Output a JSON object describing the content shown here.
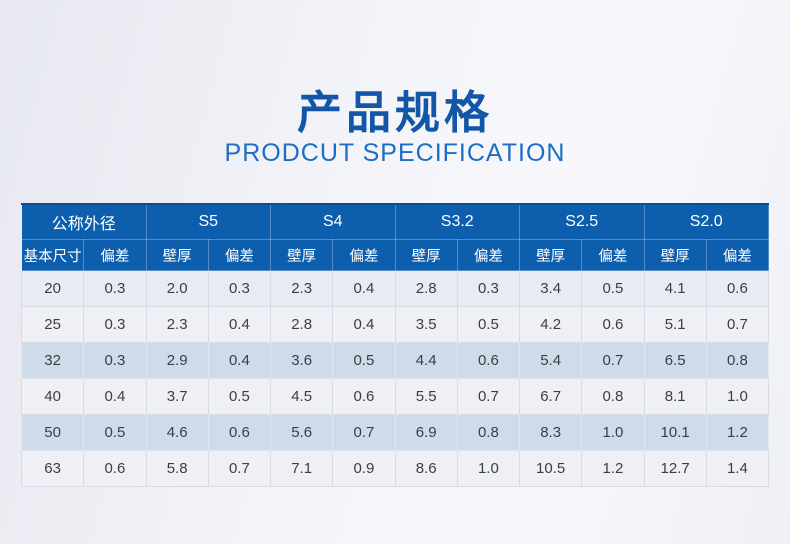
{
  "page": {
    "title": "产品规格",
    "subtitle": "PRODCUT SPECIFICATION"
  },
  "table": {
    "groups": [
      {
        "label": "公称外径",
        "sub": [
          "基本尺寸",
          "偏差"
        ]
      },
      {
        "label": "S5",
        "sub": [
          "壁厚",
          "偏差"
        ]
      },
      {
        "label": "S4",
        "sub": [
          "壁厚",
          "偏差"
        ]
      },
      {
        "label": "S3.2",
        "sub": [
          "壁厚",
          "偏差"
        ]
      },
      {
        "label": "S2.5",
        "sub": [
          "壁厚",
          "偏差"
        ]
      },
      {
        "label": "S2.0",
        "sub": [
          "壁厚",
          "偏差"
        ]
      }
    ],
    "rows": [
      [
        "20",
        "0.3",
        "2.0",
        "0.3",
        "2.3",
        "0.4",
        "2.8",
        "0.3",
        "3.4",
        "0.5",
        "4.1",
        "0.6"
      ],
      [
        "25",
        "0.3",
        "2.3",
        "0.4",
        "2.8",
        "0.4",
        "3.5",
        "0.5",
        "4.2",
        "0.6",
        "5.1",
        "0.7"
      ],
      [
        "32",
        "0.3",
        "2.9",
        "0.4",
        "3.6",
        "0.5",
        "4.4",
        "0.6",
        "5.4",
        "0.7",
        "6.5",
        "0.8"
      ],
      [
        "40",
        "0.4",
        "3.7",
        "0.5",
        "4.5",
        "0.6",
        "5.5",
        "0.7",
        "6.7",
        "0.8",
        "8.1",
        "1.0"
      ],
      [
        "50",
        "0.5",
        "4.6",
        "0.6",
        "5.6",
        "0.7",
        "6.9",
        "0.8",
        "8.3",
        "1.0",
        "10.1",
        "1.2"
      ],
      [
        "63",
        "0.6",
        "5.8",
        "0.7",
        "7.1",
        "0.9",
        "8.6",
        "1.0",
        "10.5",
        "1.2",
        "12.7",
        "1.4"
      ]
    ],
    "row_styles": [
      "tint",
      "light",
      "blue",
      "light",
      "blue",
      "light"
    ]
  },
  "colors": {
    "header_bg": "#0d5fae",
    "header_top_edge": "#0a4e94",
    "title_blue": "#1156a7",
    "subtitle_blue": "#1b6ec3",
    "row_blue": "#cedcea",
    "row_light": "#eff0f6",
    "cell_border": "#d9dbe4",
    "body_text": "#3b3e44"
  }
}
